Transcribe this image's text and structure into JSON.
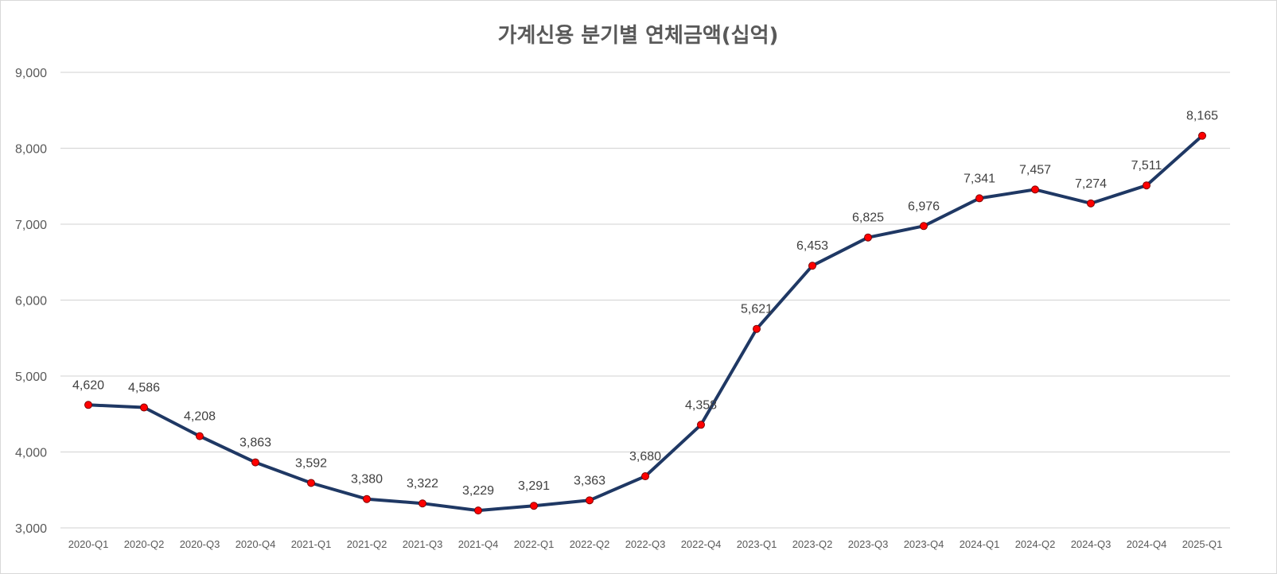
{
  "chart_data": {
    "type": "line",
    "title": "가계신용 분기별 연체금액(십억)",
    "xlabel": "",
    "ylabel": "",
    "ylim": [
      3000,
      9000
    ],
    "y_ticks": [
      3000,
      4000,
      5000,
      6000,
      7000,
      8000,
      9000
    ],
    "y_tick_labels": [
      "3,000",
      "4,000",
      "5,000",
      "6,000",
      "7,000",
      "8,000",
      "9,000"
    ],
    "grid": true,
    "legend": "none",
    "categories": [
      "2020-Q1",
      "2020-Q2",
      "2020-Q3",
      "2020-Q4",
      "2021-Q1",
      "2021-Q2",
      "2021-Q3",
      "2021-Q4",
      "2022-Q1",
      "2022-Q2",
      "2022-Q3",
      "2022-Q4",
      "2023-Q1",
      "2023-Q2",
      "2023-Q3",
      "2023-Q4",
      "2024-Q1",
      "2024-Q2",
      "2024-Q3",
      "2024-Q4",
      "2025-Q1"
    ],
    "series": [
      {
        "values": [
          4620,
          4586,
          4208,
          3863,
          3592,
          3380,
          3322,
          3229,
          3291,
          3363,
          3680,
          4358,
          5621,
          6453,
          6825,
          6976,
          7341,
          7457,
          7274,
          7511,
          8165
        ],
        "labels": [
          "4,620",
          "4,586",
          "4,208",
          "3,863",
          "3,592",
          "3,380",
          "3,322",
          "3,229",
          "3,291",
          "3,363",
          "3,680",
          "4,358",
          "5,621",
          "6,453",
          "6,825",
          "6,976",
          "7,341",
          "7,457",
          "7,274",
          "7,511",
          "8,165"
        ],
        "line_color": "#1f3864",
        "marker_color": "#ff0000"
      }
    ]
  }
}
